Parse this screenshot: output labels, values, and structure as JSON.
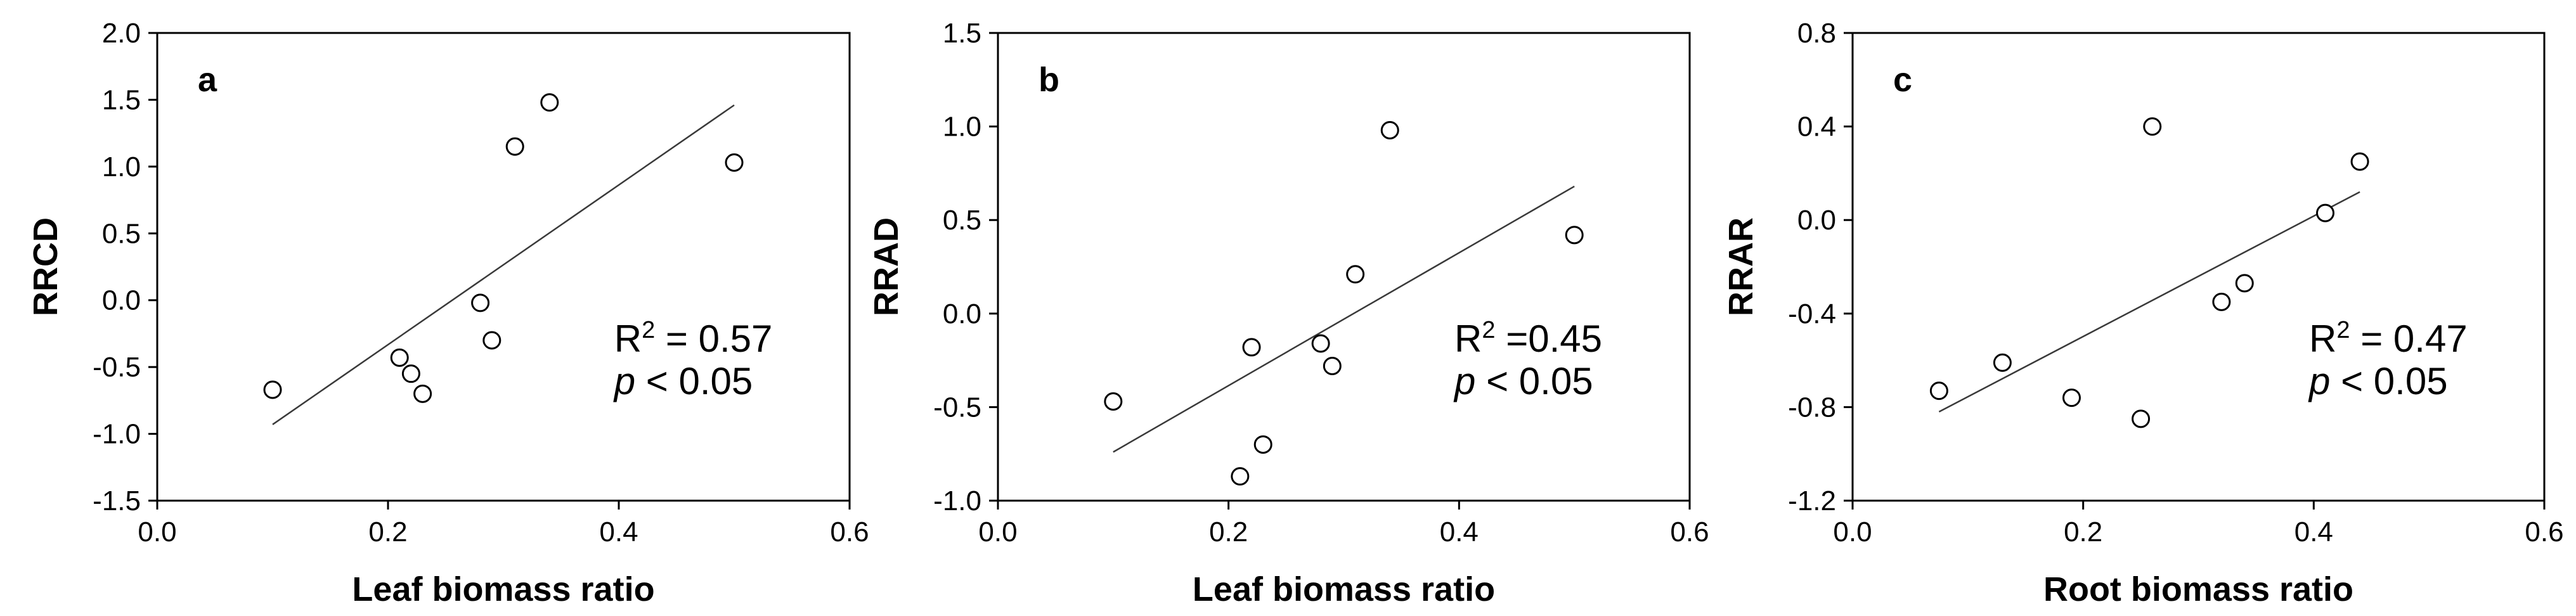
{
  "chart_data": [
    {
      "type": "scatter",
      "panel_label": "a",
      "xlabel": "Leaf biomass ratio",
      "ylabel": "RRCD",
      "xlim": [
        0.0,
        0.6
      ],
      "ylim": [
        -1.5,
        2.0
      ],
      "xticks": [
        "0.0",
        "0.2",
        "0.4",
        "0.6"
      ],
      "yticks": [
        "-1.5",
        "-1.0",
        "-0.5",
        "0.0",
        "0.5",
        "1.0",
        "1.5",
        "2.0"
      ],
      "points": [
        {
          "x": 0.1,
          "y": -0.67
        },
        {
          "x": 0.21,
          "y": -0.43
        },
        {
          "x": 0.22,
          "y": -0.55
        },
        {
          "x": 0.23,
          "y": -0.7
        },
        {
          "x": 0.28,
          "y": -0.02
        },
        {
          "x": 0.29,
          "y": -0.3
        },
        {
          "x": 0.31,
          "y": 1.15
        },
        {
          "x": 0.34,
          "y": 1.48
        },
        {
          "x": 0.5,
          "y": 1.03
        }
      ],
      "trendline": {
        "x1": 0.1,
        "y1": -0.93,
        "x2": 0.5,
        "y2": 1.46
      },
      "r2_text": "R",
      "r2_sup": "2",
      "r2_value": " = 0.57",
      "p_symbol": "p",
      "p_value": " < 0.05",
      "grid": false,
      "legend": "none"
    },
    {
      "type": "scatter",
      "panel_label": "b",
      "xlabel": "Leaf biomass ratio",
      "ylabel": "RRAD",
      "xlim": [
        0.0,
        0.6
      ],
      "ylim": [
        -1.0,
        1.5
      ],
      "xticks": [
        "0.0",
        "0.2",
        "0.4",
        "0.6"
      ],
      "yticks": [
        "-1.0",
        "-0.5",
        "0.0",
        "0.5",
        "1.0",
        "1.5"
      ],
      "points": [
        {
          "x": 0.1,
          "y": -0.47
        },
        {
          "x": 0.21,
          "y": -0.87
        },
        {
          "x": 0.22,
          "y": -0.18
        },
        {
          "x": 0.23,
          "y": -0.7
        },
        {
          "x": 0.28,
          "y": -0.16
        },
        {
          "x": 0.29,
          "y": -0.28
        },
        {
          "x": 0.31,
          "y": 0.21
        },
        {
          "x": 0.34,
          "y": 0.98
        },
        {
          "x": 0.5,
          "y": 0.42
        }
      ],
      "trendline": {
        "x1": 0.1,
        "y1": -0.74,
        "x2": 0.5,
        "y2": 0.68
      },
      "r2_text": "R",
      "r2_sup": "2",
      "r2_value": " =0.45",
      "p_symbol": "p",
      "p_value": " < 0.05",
      "grid": false,
      "legend": "none"
    },
    {
      "type": "scatter",
      "panel_label": "c",
      "xlabel": "Root biomass ratio",
      "ylabel": "RRAR",
      "xlim": [
        0.0,
        0.6
      ],
      "ylim": [
        -1.2,
        0.8
      ],
      "xticks": [
        "0.0",
        "0.2",
        "0.4",
        "0.6"
      ],
      "yticks": [
        "-1.2",
        "-0.8",
        "-0.4",
        "0.0",
        "0.4",
        "0.8"
      ],
      "points": [
        {
          "x": 0.075,
          "y": -0.73
        },
        {
          "x": 0.13,
          "y": -0.61
        },
        {
          "x": 0.19,
          "y": -0.76
        },
        {
          "x": 0.25,
          "y": -0.85
        },
        {
          "x": 0.26,
          "y": 0.4
        },
        {
          "x": 0.32,
          "y": -0.35
        },
        {
          "x": 0.34,
          "y": -0.27
        },
        {
          "x": 0.41,
          "y": 0.03
        },
        {
          "x": 0.44,
          "y": 0.25
        }
      ],
      "trendline": {
        "x1": 0.075,
        "y1": -0.82,
        "x2": 0.44,
        "y2": 0.12
      },
      "r2_text": "R",
      "r2_sup": "2",
      "r2_value": " = 0.47",
      "p_symbol": "p",
      "p_value": " < 0.05",
      "grid": false,
      "legend": "none"
    }
  ]
}
